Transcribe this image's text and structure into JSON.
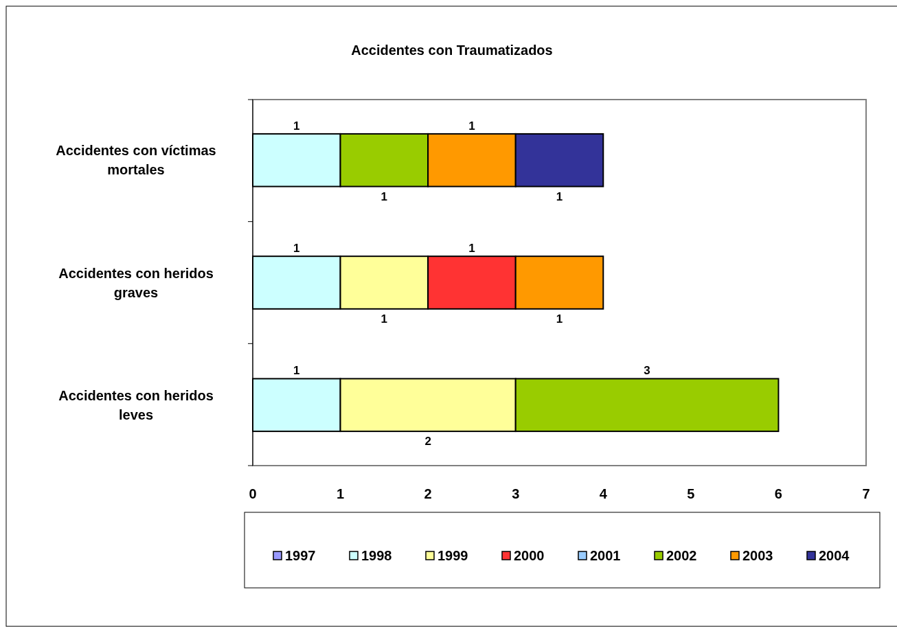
{
  "chart_data": {
    "type": "bar",
    "orientation": "horizontal",
    "stacked": true,
    "title": "Accidentes con Traumatizados",
    "categories": [
      "Accidentes con víctimas mortales",
      "Accidentes con heridos graves",
      "Accidentes con heridos leves"
    ],
    "series": [
      {
        "name": "1997",
        "color": "#9999ff",
        "values": [
          null,
          null,
          null
        ]
      },
      {
        "name": "1998",
        "color": "#ccffff",
        "values": [
          1,
          1,
          1
        ]
      },
      {
        "name": "1999",
        "color": "#ffff99",
        "values": [
          null,
          1,
          2
        ]
      },
      {
        "name": "2000",
        "color": "#ff3333",
        "values": [
          null,
          1,
          null
        ]
      },
      {
        "name": "2001",
        "color": "#99ccff",
        "values": [
          null,
          null,
          null
        ]
      },
      {
        "name": "2002",
        "color": "#99cc00",
        "values": [
          1,
          null,
          3
        ]
      },
      {
        "name": "2003",
        "color": "#ff9900",
        "values": [
          1,
          1,
          null
        ]
      },
      {
        "name": "2004",
        "color": "#333399",
        "values": [
          1,
          null,
          null
        ]
      }
    ],
    "xlim": [
      0,
      7
    ],
    "xticks": [
      0,
      1,
      2,
      3,
      4,
      5,
      6,
      7
    ],
    "data_labels": true,
    "legend": "bottom"
  }
}
